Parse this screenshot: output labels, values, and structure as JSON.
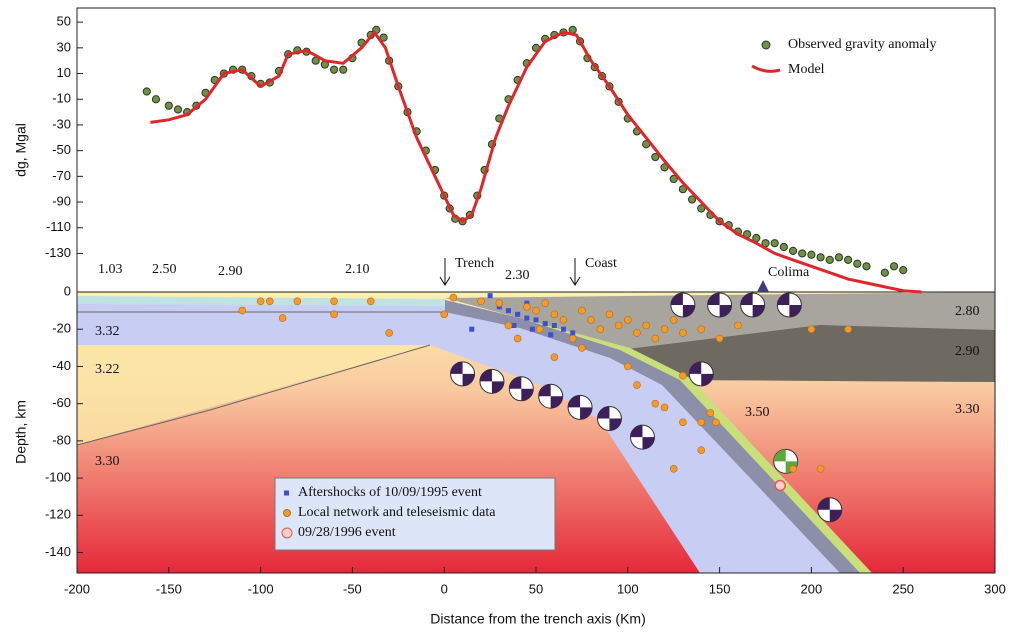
{
  "chart_data": [
    {
      "type": "line",
      "ylabel": "dg, Mgal",
      "xlim": [
        -200,
        300
      ],
      "ylim": [
        -160,
        61
      ],
      "yticks": [
        50,
        30,
        10,
        -10,
        -30,
        -50,
        -70,
        -90,
        -110,
        -130
      ],
      "legend": "top-right",
      "series": [
        {
          "name": "Observed gravity anomaly",
          "color": "#6f8f4a",
          "mode": "markers",
          "x": [
            -162,
            -157,
            -150,
            -145,
            -140,
            -135,
            -130,
            -125,
            -120,
            -115,
            -110,
            -105,
            -100,
            -95,
            -90,
            -85,
            -80,
            -75,
            -70,
            -65,
            -60,
            -55,
            -50,
            -45,
            -40,
            -37,
            -33,
            -30,
            -25,
            -20,
            -15,
            -10,
            -5,
            0,
            3,
            6,
            10,
            14,
            18,
            22,
            26,
            30,
            35,
            40,
            45,
            50,
            55,
            60,
            65,
            70,
            74,
            78,
            82,
            86,
            90,
            95,
            100,
            105,
            110,
            115,
            120,
            125,
            130,
            135,
            140,
            145,
            150,
            155,
            160,
            165,
            170,
            175,
            180,
            185,
            190,
            195,
            200,
            205,
            210,
            215,
            220,
            225,
            230,
            240,
            245,
            250
          ],
          "values": [
            -4,
            -10,
            -15,
            -18,
            -20,
            -15,
            -5,
            5,
            10,
            13,
            13,
            8,
            2,
            3,
            12,
            25,
            28,
            27,
            20,
            17,
            13,
            13,
            22,
            34,
            40,
            44,
            38,
            20,
            0,
            -20,
            -35,
            -50,
            -65,
            -85,
            -95,
            -103,
            -105,
            -100,
            -85,
            -65,
            -45,
            -25,
            -10,
            5,
            18,
            30,
            37,
            40,
            42,
            44,
            35,
            22,
            15,
            8,
            0,
            -12,
            -25,
            -35,
            -45,
            -55,
            -63,
            -72,
            -80,
            -88,
            -95,
            -100,
            -105,
            -108,
            -113,
            -115,
            -118,
            -122,
            -122,
            -125,
            -128,
            -130,
            -131,
            -133,
            -135,
            -133,
            -135,
            -138,
            -140,
            -145,
            -140,
            -143
          ]
        },
        {
          "name": "Model",
          "color": "#e0262a",
          "mode": "line",
          "x": [
            -160,
            -150,
            -140,
            -130,
            -120,
            -110,
            -100,
            -90,
            -85,
            -75,
            -65,
            -55,
            -45,
            -38,
            -32,
            -25,
            -15,
            -5,
            0,
            5,
            10,
            15,
            20,
            28,
            35,
            45,
            55,
            65,
            72,
            80,
            90,
            100,
            110,
            120,
            130,
            140,
            150,
            160,
            170,
            180,
            190,
            200,
            210,
            220,
            230,
            240,
            250,
            260
          ],
          "values": [
            -28,
            -26,
            -22,
            -10,
            10,
            13,
            0,
            8,
            25,
            28,
            20,
            18,
            30,
            42,
            30,
            0,
            -40,
            -70,
            -85,
            -100,
            -105,
            -100,
            -80,
            -40,
            -15,
            15,
            35,
            42,
            40,
            20,
            0,
            -22,
            -40,
            -58,
            -75,
            -90,
            -105,
            -115,
            -122,
            -130,
            -135,
            -140,
            -145,
            -150,
            -153,
            -156,
            -159,
            -160
          ]
        }
      ]
    },
    {
      "type": "scatter",
      "xlabel": "Distance from the trench axis (Km)",
      "ylabel": "Depth, km",
      "xlim": [
        -200,
        300
      ],
      "ylim": [
        -151,
        0
      ],
      "xticks": [
        -200,
        -150,
        -100,
        -50,
        0,
        50,
        100,
        150,
        200,
        250,
        300
      ],
      "yticks": [
        0,
        -20,
        -40,
        -60,
        -80,
        -100,
        -120,
        -140
      ],
      "annotations": [
        "1.03",
        "2.50",
        "2.90",
        "2.10",
        "Trench",
        "2.30",
        "Coast",
        "Colima",
        "3.32",
        "3.22",
        "3.30",
        "2.80",
        "2.90",
        "3.50",
        "3.30"
      ],
      "series": [
        {
          "name": "Aftershocks of 10/09/1995 event",
          "color": "#3c4fd0",
          "x": [
            25,
            30,
            35,
            40,
            45,
            50,
            55,
            60,
            65,
            70,
            48,
            58,
            38,
            15,
            45
          ],
          "values": [
            -2,
            -8,
            -10,
            -12,
            -14,
            -15,
            -17,
            -18,
            -20,
            -22,
            -20,
            -23,
            -18,
            -20,
            -6
          ]
        },
        {
          "name": "Local network and teleseismic data",
          "color": "#f39a2c",
          "x": [
            -100,
            -95,
            -80,
            -60,
            -40,
            -88,
            -110,
            -60,
            -30,
            0,
            5,
            20,
            30,
            35,
            40,
            45,
            50,
            52,
            55,
            60,
            65,
            70,
            75,
            80,
            85,
            90,
            95,
            100,
            105,
            110,
            115,
            120,
            125,
            130,
            140,
            150,
            160,
            200,
            220,
            60,
            75,
            100,
            105,
            115,
            120,
            130,
            140,
            145,
            148,
            130,
            190,
            205,
            125,
            140
          ],
          "values": [
            -5,
            -5,
            -5,
            -5,
            -5,
            -14,
            -10,
            -12,
            -22,
            -12,
            -3,
            -5,
            -6,
            -18,
            -25,
            -8,
            -10,
            -20,
            -6,
            -12,
            -15,
            -25,
            -10,
            -15,
            -20,
            -12,
            -18,
            -15,
            -22,
            -18,
            -25,
            -20,
            -15,
            -22,
            -20,
            -25,
            -18,
            -20,
            -20,
            -35,
            -30,
            -40,
            -50,
            -60,
            -62,
            -70,
            -85,
            -65,
            -70,
            -45,
            -95,
            -95,
            -95,
            -70
          ]
        },
        {
          "name": "09/28/1996 event",
          "color": "#e8545a",
          "x": [
            183
          ],
          "values": [
            -104
          ]
        }
      ],
      "focal_mechanisms": {
        "color": "#3d1f5c",
        "x": [
          130,
          150,
          168,
          188,
          10,
          26,
          42,
          58,
          74,
          90,
          108,
          140,
          186,
          210
        ],
        "y": [
          -7,
          -7,
          -7,
          -7,
          -44,
          -48,
          -52,
          -56,
          -62,
          -68,
          -78,
          -44,
          -91,
          -117
        ]
      }
    }
  ]
}
